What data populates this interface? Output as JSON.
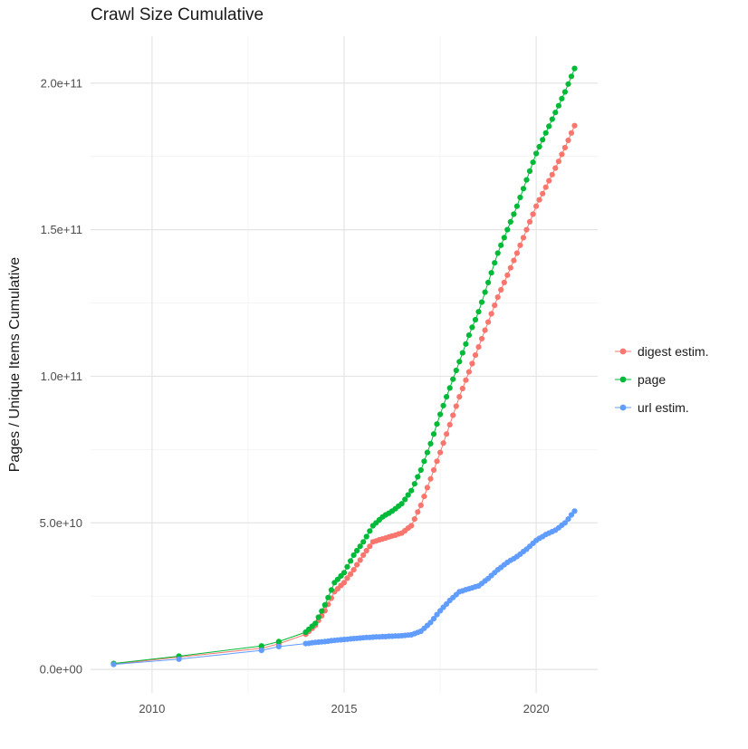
{
  "chart_data": {
    "type": "scatter-line",
    "title": "Crawl Size Cumulative",
    "xlabel": "",
    "ylabel": "Pages / Unique Items Cumulative",
    "y_unit": "values are in units of 1e9 (billions)",
    "xlim": [
      2008.4,
      2021.6
    ],
    "ylim": [
      -8,
      216
    ],
    "grid": {
      "major_color": "#E4E4E4",
      "minor_color": "#F2F2F2",
      "background": "#FFFFFF"
    },
    "x_ticks": [
      {
        "v": 2010,
        "label": "2010"
      },
      {
        "v": 2015,
        "label": "2015"
      },
      {
        "v": 2020,
        "label": "2020"
      }
    ],
    "y_ticks": [
      {
        "v": 0,
        "label": "0.0e+00"
      },
      {
        "v": 50,
        "label": "5.0e+10"
      },
      {
        "v": 100,
        "label": "1.0e+11"
      },
      {
        "v": 150,
        "label": "1.5e+11"
      },
      {
        "v": 200,
        "label": "2.0e+11"
      }
    ],
    "x_minor": [
      2012.5,
      2017.5
    ],
    "y_minor": [
      25,
      75,
      125,
      175
    ],
    "legend_position": "right",
    "x": [
      2009,
      2010.7,
      2012.85,
      2013.3,
      2014,
      2014.083,
      2014.167,
      2014.25,
      2014.333,
      2014.417,
      2014.5,
      2014.583,
      2014.667,
      2014.75,
      2014.833,
      2014.917,
      2015,
      2015.083,
      2015.167,
      2015.25,
      2015.333,
      2015.417,
      2015.5,
      2015.583,
      2015.667,
      2015.75,
      2015.833,
      2015.917,
      2016,
      2016.083,
      2016.167,
      2016.25,
      2016.333,
      2016.417,
      2016.5,
      2016.583,
      2016.667,
      2016.75,
      2016.833,
      2016.917,
      2017,
      2017.083,
      2017.167,
      2017.25,
      2017.333,
      2017.417,
      2017.5,
      2017.583,
      2017.667,
      2017.75,
      2017.833,
      2017.917,
      2018,
      2018.083,
      2018.167,
      2018.25,
      2018.333,
      2018.417,
      2018.5,
      2018.583,
      2018.667,
      2018.75,
      2018.833,
      2018.917,
      2019,
      2019.083,
      2019.167,
      2019.25,
      2019.333,
      2019.417,
      2019.5,
      2019.583,
      2019.667,
      2019.75,
      2019.833,
      2019.917,
      2020,
      2020.083,
      2020.167,
      2020.25,
      2020.333,
      2020.417,
      2020.5,
      2020.583,
      2020.667,
      2020.75,
      2020.833,
      2020.917,
      2021
    ],
    "series": [
      {
        "name": "digest estim.",
        "color": "#F8766D",
        "y": [
          1.8,
          4.2,
          7.2,
          8.7,
          12,
          13,
          14,
          15,
          16.7,
          18.3,
          20,
          22.2,
          24.3,
          26.5,
          27.5,
          28.6,
          29.6,
          31.1,
          32.5,
          34,
          35.7,
          37.3,
          39,
          40.5,
          42,
          43.5,
          43.8,
          44.2,
          44.5,
          44.8,
          45.2,
          45.5,
          45.8,
          46.2,
          46.5,
          47.3,
          48.2,
          49,
          51.3,
          53.7,
          56,
          59,
          62,
          65,
          68,
          71,
          74,
          77.2,
          80.3,
          83.5,
          86.7,
          89.8,
          93,
          95.8,
          98.7,
          101.5,
          104.3,
          107.2,
          110,
          112.8,
          115.7,
          118.5,
          121.3,
          124.2,
          127,
          129.5,
          132,
          134.5,
          137,
          139.5,
          142,
          144.7,
          147.3,
          150,
          152.7,
          155.3,
          158,
          160.2,
          162.3,
          164.5,
          166.7,
          168.8,
          171,
          173.3,
          175.7,
          178,
          180.5,
          183,
          185.5
        ]
      },
      {
        "name": "page",
        "color": "#00BA38",
        "y": [
          2,
          4.5,
          8,
          9.5,
          12.7,
          13.7,
          14.7,
          15.7,
          17.8,
          19.9,
          22,
          24.5,
          27.1,
          29.6,
          30.7,
          31.9,
          33,
          35,
          37,
          39,
          40.5,
          42,
          43.5,
          45.3,
          47.2,
          49,
          50,
          51,
          52,
          52.7,
          53.3,
          54,
          54.8,
          55.7,
          56.5,
          58,
          59.5,
          61,
          63.3,
          65.7,
          68,
          71,
          74,
          77,
          80.3,
          83.7,
          87,
          90,
          93,
          96,
          99,
          102,
          105,
          108,
          111,
          114,
          116.7,
          119.3,
          122,
          125.3,
          128.7,
          132,
          135.3,
          138.7,
          142,
          144.7,
          147.3,
          150,
          152.7,
          155.3,
          158,
          161,
          164,
          167,
          170,
          173,
          176,
          178.3,
          180.7,
          183,
          185.3,
          187.7,
          190,
          192.3,
          194.7,
          197,
          199.7,
          202.3,
          205
        ]
      },
      {
        "name": "url estim.",
        "color": "#619CFF",
        "y": [
          1.7,
          3.5,
          6.5,
          7.8,
          8.8,
          8.9,
          9.1,
          9.2,
          9.3,
          9.4,
          9.5,
          9.6,
          9.8,
          9.9,
          10,
          10.1,
          10.2,
          10.3,
          10.4,
          10.5,
          10.6,
          10.7,
          10.8,
          10.9,
          10.9,
          11,
          11.1,
          11.1,
          11.2,
          11.2,
          11.3,
          11.3,
          11.4,
          11.4,
          11.5,
          11.6,
          11.7,
          11.8,
          12.2,
          12.6,
          13,
          14,
          15,
          16,
          17.3,
          18.7,
          20,
          21.2,
          22.3,
          23.5,
          24.5,
          25.5,
          26.5,
          26.8,
          27.2,
          27.5,
          27.8,
          28.2,
          28.5,
          29.3,
          30.2,
          31,
          32,
          33,
          34,
          34.8,
          35.7,
          36.5,
          37.2,
          37.8,
          38.5,
          39.3,
          40.2,
          41,
          42,
          43,
          44,
          44.7,
          45.3,
          46,
          46.5,
          47,
          47.5,
          48.3,
          49.2,
          50,
          51.3,
          52.7,
          54
        ]
      }
    ]
  }
}
